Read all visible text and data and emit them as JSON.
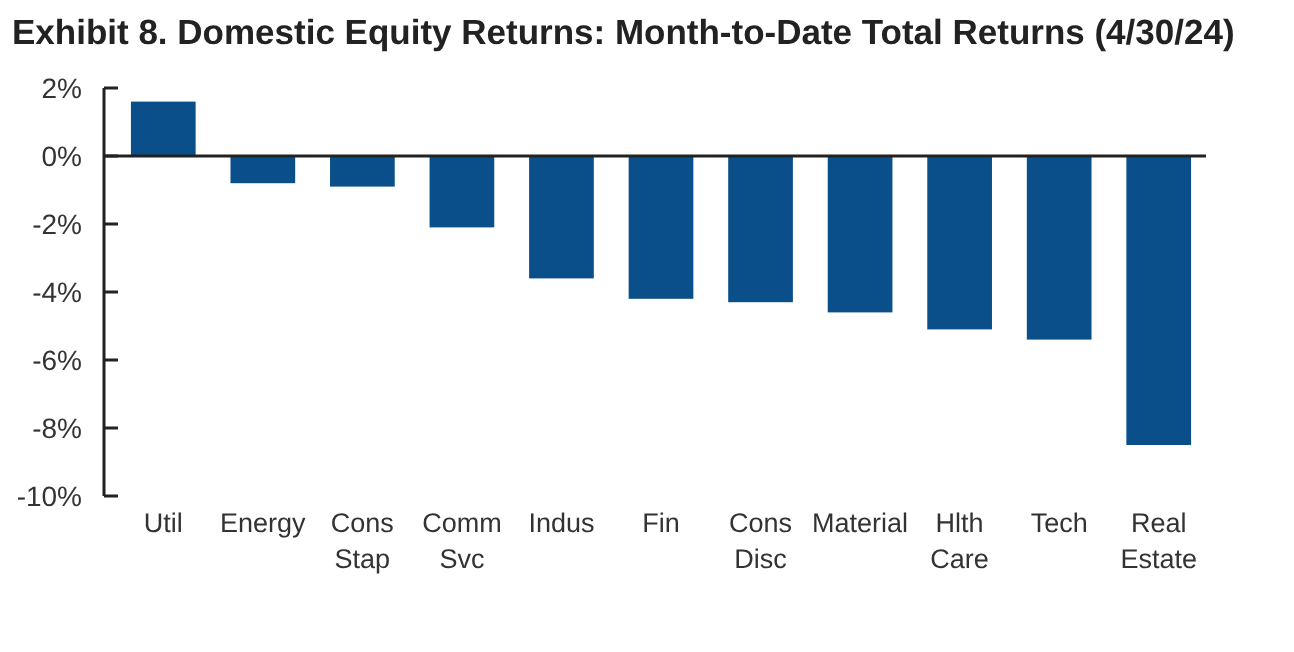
{
  "chart_data": {
    "type": "bar",
    "title": "Exhibit 8. Domestic Equity Returns: Month-to-Date Total Returns (4/30/24)",
    "categories": [
      "Util",
      "Energy",
      "Cons Stap",
      "Comm Svc",
      "Indus",
      "Fin",
      "Cons Disc",
      "Material",
      "Hlth Care",
      "Tech",
      "Real Estate"
    ],
    "values": [
      1.6,
      -0.8,
      -0.9,
      -2.1,
      -3.6,
      -4.2,
      -4.3,
      -4.6,
      -5.1,
      -5.4,
      -8.5
    ],
    "color": "#0b4f8a",
    "ylim": [
      -10,
      2
    ],
    "yticks": [
      {
        "value": 2,
        "label": "2%"
      },
      {
        "value": 0,
        "label": "0%"
      },
      {
        "value": -2,
        "label": "-2%"
      },
      {
        "value": -4,
        "label": "-4%"
      },
      {
        "value": -6,
        "label": "-6%"
      },
      {
        "value": -8,
        "label": "-8%"
      },
      {
        "value": -10,
        "label": "-10%"
      }
    ]
  }
}
